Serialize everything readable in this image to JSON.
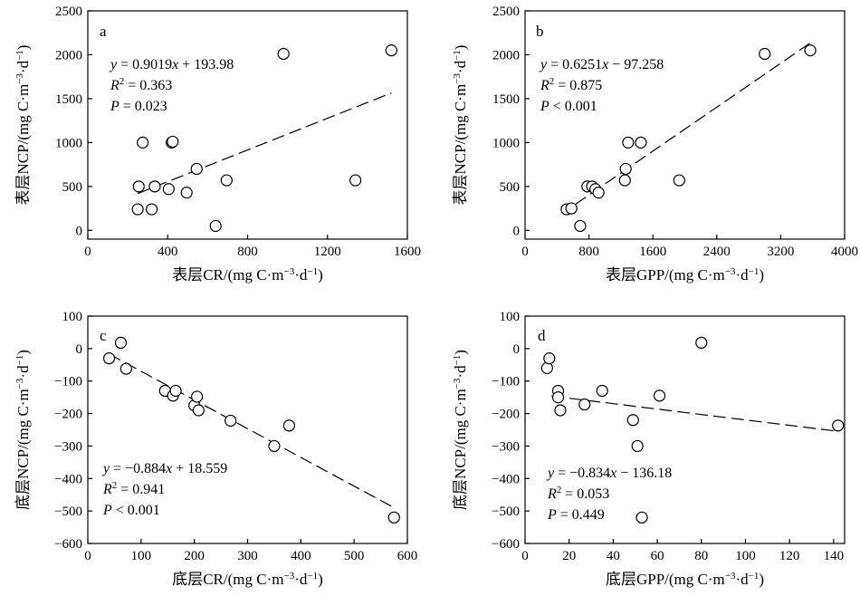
{
  "chart_data": [
    {
      "id": "a",
      "type": "scatter",
      "panel_label": "a",
      "xlabel": "表层CR/(mg C·m⁻³·d⁻¹)",
      "ylabel": "表层NCP/(mg C·m⁻³·d⁻¹)",
      "xlim": [
        0,
        1600
      ],
      "ylim": [
        -100,
        2500
      ],
      "xticks": [
        0,
        400,
        800,
        1200,
        1600
      ],
      "yticks": [
        0,
        500,
        1000,
        1500,
        2000,
        2500
      ],
      "grid": false,
      "equation": "y = 0.9019x + 193.98",
      "r2": "R² = 0.363",
      "p": "P = 0.023",
      "fit": {
        "slope": 0.9019,
        "intercept": 193.98,
        "x_range": [
          250,
          1520
        ]
      },
      "x": [
        250,
        255,
        275,
        320,
        335,
        405,
        420,
        425,
        495,
        545,
        640,
        695,
        980,
        1340,
        1520
      ],
      "y": [
        240,
        500,
        1000,
        240,
        500,
        470,
        1000,
        1010,
        430,
        700,
        50,
        570,
        2010,
        570,
        2050
      ]
    },
    {
      "id": "b",
      "type": "scatter",
      "panel_label": "b",
      "xlabel": "表层GPP/(mg C·m⁻³·d⁻¹)",
      "ylabel": "表层NCP/(mg C·m⁻³·d⁻¹)",
      "xlim": [
        0,
        4000
      ],
      "ylim": [
        -100,
        2500
      ],
      "xticks": [
        0,
        800,
        1600,
        2400,
        3200,
        4000
      ],
      "yticks": [
        0,
        500,
        1000,
        1500,
        2000,
        2500
      ],
      "grid": false,
      "equation": "y = 0.6251x − 97.258",
      "r2": "R² = 0.875",
      "p": "P < 0.001",
      "fit": {
        "slope": 0.6251,
        "intercept": -97.258,
        "x_range": [
          630,
          3570
        ]
      },
      "x": [
        520,
        580,
        690,
        780,
        840,
        880,
        920,
        1250,
        1260,
        1290,
        1450,
        1930,
        3000,
        3570
      ],
      "y": [
        240,
        250,
        50,
        500,
        500,
        470,
        430,
        570,
        700,
        1000,
        1000,
        570,
        2010,
        2050
      ]
    },
    {
      "id": "c",
      "type": "scatter",
      "panel_label": "c",
      "xlabel": "底层CR/(mg C·m⁻³·d⁻¹)",
      "ylabel": "底层NCP/(mg C·m⁻³·d⁻¹)",
      "xlim": [
        0,
        600
      ],
      "ylim": [
        -600,
        100
      ],
      "xticks": [
        0,
        100,
        200,
        300,
        400,
        500,
        600
      ],
      "yticks": [
        100,
        0,
        -100,
        -200,
        -300,
        -400,
        -500,
        -600
      ],
      "grid": false,
      "equation": "y = −0.884x + 18.559",
      "r2": "R² = 0.941",
      "p": "P < 0.001",
      "fit": {
        "slope": -0.884,
        "intercept": 18.559,
        "x_range": [
          40,
          575
        ]
      },
      "x": [
        40,
        62,
        72,
        145,
        160,
        165,
        200,
        205,
        208,
        268,
        350,
        378,
        575
      ],
      "y": [
        -30,
        18,
        -62,
        -130,
        -145,
        -130,
        -175,
        -148,
        -190,
        -222,
        -300,
        -237,
        -520
      ]
    },
    {
      "id": "d",
      "type": "scatter",
      "panel_label": "d",
      "xlabel": "底层GPP/(mg C·m⁻³·d⁻¹)",
      "ylabel": "底层NCP/(mg C·m⁻³·d⁻¹)",
      "xlim": [
        0,
        145
      ],
      "ylim": [
        -600,
        100
      ],
      "xticks": [
        0,
        20,
        40,
        60,
        80,
        100,
        120,
        140
      ],
      "yticks": [
        100,
        0,
        -100,
        -200,
        -300,
        -400,
        -500,
        -600
      ],
      "grid": false,
      "equation": "y = −0.834x − 136.18",
      "r2": "R² = 0.053",
      "p": "P = 0.449",
      "fit": {
        "slope": -0.834,
        "intercept": -136.18,
        "x_range": [
          12,
          142
        ]
      },
      "x": [
        10,
        11,
        15,
        15,
        16,
        27,
        35,
        49,
        51,
        53,
        61,
        80,
        142
      ],
      "y": [
        -60,
        -30,
        -130,
        -150,
        -190,
        -172,
        -130,
        -220,
        -300,
        -520,
        -145,
        18,
        -237
      ]
    }
  ]
}
